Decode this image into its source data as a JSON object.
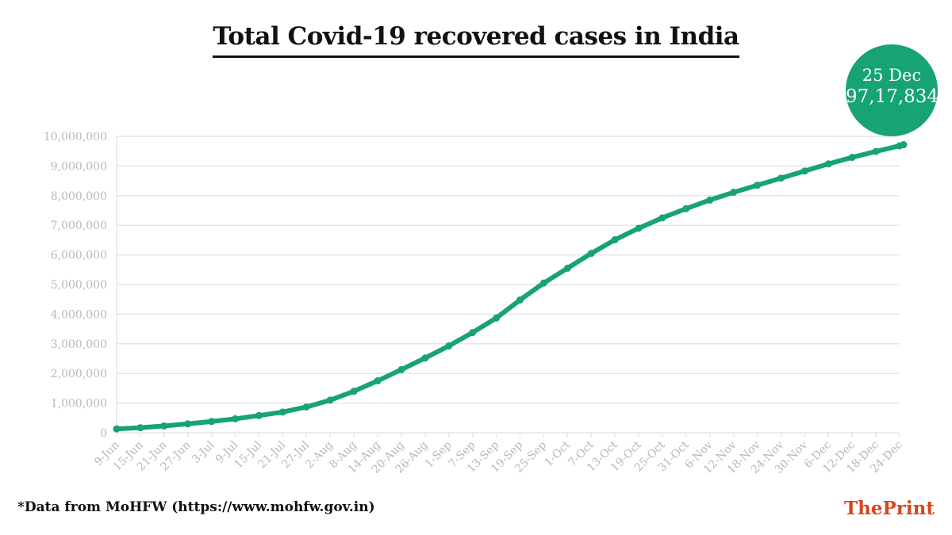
{
  "title": "Total Covid-19 recovered cases in India",
  "footnote": "*Data from MoHFW (https://www.mohfw.gov.in)",
  "brand": {
    "part1": "The",
    "part2": "Print"
  },
  "badge": {
    "date": "25 Dec",
    "value": "97,17,834"
  },
  "colors": {
    "series": "#17a372",
    "grid": "#e6e6e6",
    "ticks": "#b8b8b8",
    "brand": "#d4471f"
  },
  "chart_data": {
    "type": "line",
    "title": "Total Covid-19 recovered cases in India",
    "xlabel": "",
    "ylabel": "",
    "ylim": [
      0,
      10000000
    ],
    "yticks": [
      "0",
      "1,000,000",
      "2,000,000",
      "3,000,000",
      "4,000,000",
      "5,000,000",
      "6,000,000",
      "7,000,000",
      "8,000,000",
      "9,000,000",
      "10,000,000"
    ],
    "x_tick_labels": [
      "9-Jun",
      "15-Jun",
      "21-Jun",
      "27-Jun",
      "3-Jul",
      "9-Jul",
      "15-Jul",
      "21-Jul",
      "27-Jul",
      "2-Aug",
      "8-Aug",
      "14-Aug",
      "20-Aug",
      "26-Aug",
      "1-Sep",
      "7-Sep",
      "13-Sep",
      "19-Sep",
      "25-Sep",
      "1-Oct",
      "7-Oct",
      "13-Oct",
      "19-Oct",
      "25-Oct",
      "31-Oct",
      "6-Nov",
      "12-Nov",
      "18-Nov",
      "24-Nov",
      "30-Nov",
      "6-Dec",
      "12-Dec",
      "18-Dec",
      "24-Dec"
    ],
    "grid": true,
    "legend": "none",
    "series": [
      {
        "x": [
          "9-Jun",
          "15-Jun",
          "21-Jun",
          "27-Jun",
          "3-Jul",
          "9-Jul",
          "15-Jul",
          "21-Jul",
          "27-Jul",
          "2-Aug",
          "8-Aug",
          "14-Aug",
          "20-Aug",
          "26-Aug",
          "1-Sep",
          "7-Sep",
          "13-Sep",
          "19-Sep",
          "25-Sep",
          "1-Oct",
          "7-Oct",
          "13-Oct",
          "19-Oct",
          "25-Oct",
          "31-Oct",
          "6-Nov",
          "12-Nov",
          "18-Nov",
          "24-Nov",
          "30-Nov",
          "6-Dec",
          "12-Dec",
          "18-Dec",
          "24-Dec",
          "25-Dec"
        ],
        "values": [
          130000,
          170000,
          230000,
          300000,
          380000,
          470000,
          580000,
          700000,
          870000,
          1100000,
          1400000,
          1750000,
          2130000,
          2520000,
          2930000,
          3380000,
          3870000,
          4480000,
          5050000,
          5550000,
          6050000,
          6510000,
          6900000,
          7250000,
          7560000,
          7850000,
          8110000,
          8350000,
          8590000,
          8830000,
          9070000,
          9290000,
          9490000,
          9680000,
          9717834
        ]
      }
    ]
  }
}
